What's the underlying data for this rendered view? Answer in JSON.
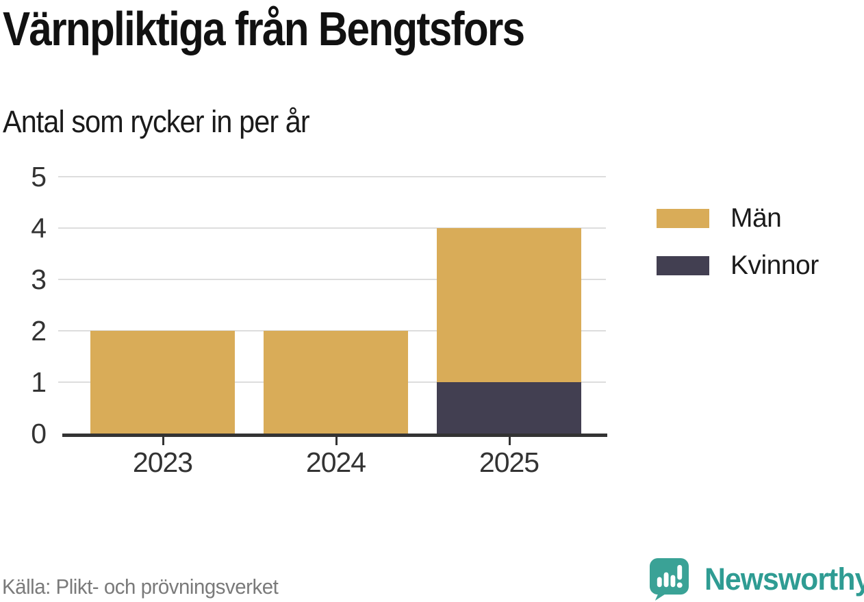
{
  "header": {
    "title": "Värnpliktiga från Bengtsfors",
    "subtitle": "Antal som rycker in per år"
  },
  "footer": {
    "source": "Källa: Plikt- och prövningsverket"
  },
  "brand": {
    "name": "Newsworthy",
    "color": "#2f9c93",
    "icon": "speech-bubble-bar-chart"
  },
  "colors": {
    "grid": "#dddddd",
    "axis": "#333333",
    "text_dark": "#111111",
    "text_muted": "#7a7a7a"
  },
  "chart_data": {
    "type": "bar",
    "stacked": true,
    "title": "Värnpliktiga från Bengtsfors",
    "subtitle": "Antal som rycker in per år",
    "categories": [
      "2023",
      "2024",
      "2025"
    ],
    "series": [
      {
        "name": "Män",
        "color": "#d9ac58",
        "values": [
          2,
          2,
          3
        ]
      },
      {
        "name": "Kvinnor",
        "color": "#423f51",
        "values": [
          0,
          0,
          1
        ]
      }
    ],
    "stack_order_bottom_to_top": [
      "Kvinnor",
      "Män"
    ],
    "totals": [
      2,
      2,
      4
    ],
    "xlabel": "",
    "ylabel": "",
    "ylim": [
      0,
      5
    ],
    "yticks": [
      0,
      1,
      2,
      3,
      4,
      5
    ],
    "grid": true,
    "legend_position": "right"
  }
}
